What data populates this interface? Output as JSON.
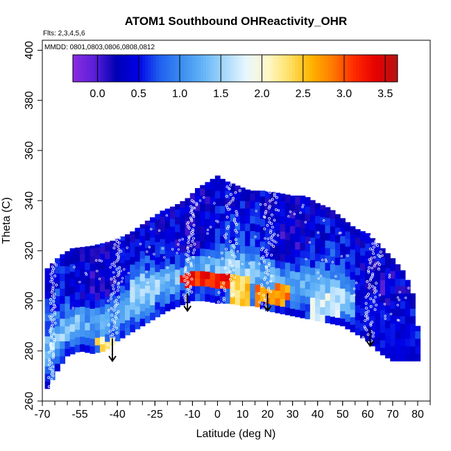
{
  "chart_data": {
    "type": "heatmap",
    "title": "ATOM1 Southbound OHReactivity_OHR",
    "subtitle_flights": "Flts: 2,3,4,5,6",
    "subtitle_dates": "MMDD: 0801,0803,0806,0808,0812",
    "xlabel": "Latitude (deg N)",
    "ylabel": "Theta (C)",
    "xlim": [
      -70,
      85
    ],
    "ylim": [
      260,
      404
    ],
    "x_ticks": [
      -70,
      -55,
      -40,
      -25,
      -10,
      0,
      10,
      20,
      30,
      40,
      50,
      60,
      70,
      80
    ],
    "y_ticks": [
      260,
      280,
      300,
      320,
      340,
      360,
      380,
      400
    ],
    "colorbar": {
      "range": [
        -0.3,
        3.65
      ],
      "ticks": [
        0.0,
        0.5,
        1.0,
        1.5,
        2.0,
        2.5,
        3.0,
        3.5
      ],
      "colors": [
        "#8a2be2",
        "#5a1fd8",
        "#0000b4",
        "#0000e6",
        "#1f5ff0",
        "#3a8cf0",
        "#63b4f7",
        "#a5d8fb",
        "#e8f6ff",
        "#fff8c8",
        "#ffe066",
        "#ffb400",
        "#ff7a00",
        "#ff2a00",
        "#e60000",
        "#b41414"
      ]
    },
    "surface_boundary": [
      [
        -68,
        265
      ],
      [
        -64,
        272
      ],
      [
        -60,
        278
      ],
      [
        -55,
        280
      ],
      [
        -50,
        279
      ],
      [
        -45,
        280
      ],
      [
        -40,
        284
      ],
      [
        -35,
        287
      ],
      [
        -30,
        290
      ],
      [
        -25,
        293
      ],
      [
        -20,
        296
      ],
      [
        -15,
        298
      ],
      [
        -10,
        300
      ],
      [
        -5,
        300
      ],
      [
        0,
        299
      ],
      [
        5,
        299
      ],
      [
        10,
        298
      ],
      [
        15,
        298
      ],
      [
        20,
        296
      ],
      [
        25,
        295
      ],
      [
        30,
        294
      ],
      [
        35,
        293
      ],
      [
        40,
        292
      ],
      [
        45,
        291
      ],
      [
        50,
        290
      ],
      [
        55,
        287
      ],
      [
        60,
        284
      ],
      [
        65,
        279
      ],
      [
        70,
        276
      ],
      [
        77,
        276
      ]
    ],
    "top_boundary": [
      [
        -68,
        313
      ],
      [
        -63,
        318
      ],
      [
        -58,
        321
      ],
      [
        -50,
        322
      ],
      [
        -42,
        324
      ],
      [
        -35,
        327
      ],
      [
        -28,
        332
      ],
      [
        -22,
        336
      ],
      [
        -17,
        338
      ],
      [
        -12,
        341
      ],
      [
        -8,
        345
      ],
      [
        -3,
        348
      ],
      [
        0,
        350
      ],
      [
        3,
        348
      ],
      [
        8,
        346
      ],
      [
        13,
        344
      ],
      [
        18,
        344
      ],
      [
        25,
        343
      ],
      [
        30,
        342
      ],
      [
        35,
        342
      ],
      [
        40,
        339
      ],
      [
        45,
        337
      ],
      [
        50,
        333
      ],
      [
        55,
        329
      ],
      [
        60,
        327
      ],
      [
        65,
        322
      ],
      [
        70,
        317
      ],
      [
        75,
        311
      ],
      [
        78,
        303
      ],
      [
        80,
        290
      ]
    ],
    "profiles": [
      {
        "lat_range": [
          -68,
          -64
        ],
        "theta_range": [
          265,
          315
        ],
        "pattern": "low-mid"
      },
      {
        "lat_range": [
          -44,
          -38
        ],
        "theta_range": [
          280,
          325
        ],
        "pattern": "mid"
      },
      {
        "lat_range": [
          -14,
          -8
        ],
        "theta_range": [
          300,
          340
        ],
        "pattern": "mid"
      },
      {
        "lat_range": [
          0,
          10
        ],
        "theta_range": [
          298,
          350
        ],
        "pattern": "peak"
      },
      {
        "lat_range": [
          16,
          24
        ],
        "theta_range": [
          296,
          344
        ],
        "pattern": "peak"
      },
      {
        "lat_range": [
          58,
          66
        ],
        "theta_range": [
          284,
          327
        ],
        "pattern": "low"
      }
    ],
    "hotspots": [
      {
        "lat_range": [
          -15,
          5
        ],
        "theta_range": [
          306,
          311
        ],
        "value": 3.3
      },
      {
        "lat_range": [
          5,
          12
        ],
        "theta_range": [
          298,
          310
        ],
        "value": 2.5
      },
      {
        "lat_range": [
          15,
          28
        ],
        "theta_range": [
          299,
          306
        ],
        "value": 2.9
      },
      {
        "lat_range": [
          -35,
          -25
        ],
        "theta_range": [
          299,
          310
        ],
        "value": 1.5
      },
      {
        "lat_range": [
          -48,
          -38
        ],
        "theta_range": [
          281,
          285
        ],
        "value": 2.4
      },
      {
        "lat_range": [
          38,
          48
        ],
        "theta_range": [
          293,
          302
        ],
        "value": 1.8
      }
    ],
    "descent_arrows": [
      {
        "lat": -42,
        "theta_start": 285,
        "theta_end": 276
      },
      {
        "lat": -12,
        "theta_start": 303,
        "theta_end": 296
      },
      {
        "lat": 20,
        "theta_start": 303,
        "theta_end": 296
      },
      {
        "lat": 61,
        "theta_start": 289,
        "theta_end": 282
      }
    ],
    "grid": false,
    "legend_placement": "top"
  }
}
